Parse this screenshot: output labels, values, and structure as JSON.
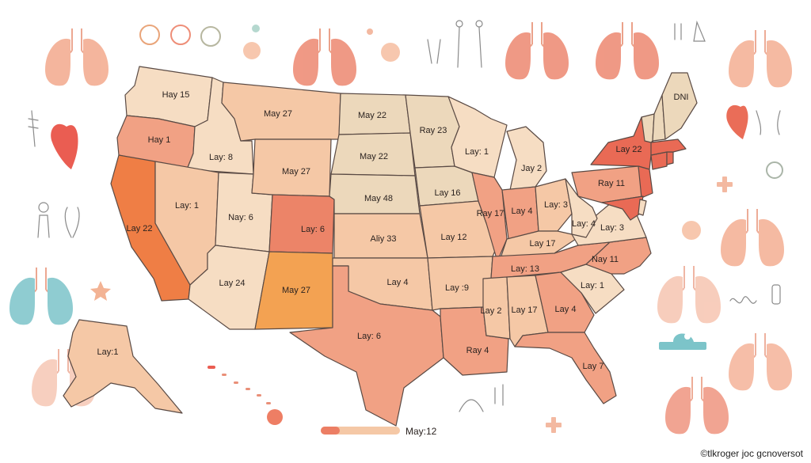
{
  "colors": {
    "very_light": "#f8dcc0",
    "light": "#f5c8a6",
    "medium": "#f1a184",
    "strong": "#ec8468",
    "deep": "#e96a55",
    "hot": "#ef7e45",
    "gold": "#f3a252",
    "tan": "#ecd8bb",
    "pale": "#f6ddc3",
    "lung": "#f2a48a",
    "lung_teal": "#7cc4c9"
  },
  "map": {
    "states": [
      {
        "id": "wa",
        "label": "Hay 15",
        "fill": "pale"
      },
      {
        "id": "or",
        "label": "Hay 1",
        "fill": "medium"
      },
      {
        "id": "ca",
        "label": "Lay 22",
        "fill": "hot"
      },
      {
        "id": "id",
        "label": "Lay: 8",
        "fill": "pale"
      },
      {
        "id": "nv",
        "label": "Lay: 1",
        "fill": "light"
      },
      {
        "id": "ut",
        "label": "Nay: 6",
        "fill": "pale"
      },
      {
        "id": "az",
        "label": "Lay 24",
        "fill": "pale"
      },
      {
        "id": "mt",
        "label": "May 27",
        "fill": "light"
      },
      {
        "id": "wy",
        "label": "May 27",
        "fill": "light"
      },
      {
        "id": "co",
        "label": "Lay: 6",
        "fill": "strong"
      },
      {
        "id": "nm",
        "label": "May 27",
        "fill": "gold"
      },
      {
        "id": "nd",
        "label": "May 22",
        "fill": "tan"
      },
      {
        "id": "sd",
        "label": "May 22",
        "fill": "tan"
      },
      {
        "id": "ne",
        "label": "May 48",
        "fill": "tan"
      },
      {
        "id": "ks",
        "label": "Aliy 33",
        "fill": "light"
      },
      {
        "id": "ok",
        "label": "Lay 4",
        "fill": "light"
      },
      {
        "id": "tx",
        "label": "Lay: 6",
        "fill": "medium"
      },
      {
        "id": "mn",
        "label": "Ray 23",
        "fill": "tan"
      },
      {
        "id": "ia",
        "label": "Lay 16",
        "fill": "tan"
      },
      {
        "id": "mo",
        "label": "Lay 12",
        "fill": "light"
      },
      {
        "id": "ar",
        "label": "Lay :9",
        "fill": "light"
      },
      {
        "id": "la",
        "label": "Ray 4",
        "fill": "medium"
      },
      {
        "id": "wi",
        "label": "Lay: 1",
        "fill": "pale"
      },
      {
        "id": "il",
        "label": "Ray 17",
        "fill": "medium"
      },
      {
        "id": "mi",
        "label": "Jay 2",
        "fill": "pale"
      },
      {
        "id": "in",
        "label": "Lay 4",
        "fill": "medium"
      },
      {
        "id": "oh",
        "label": "Lay: 3",
        "fill": "light"
      },
      {
        "id": "ky",
        "label": "Lay 17",
        "fill": "light"
      },
      {
        "id": "tn",
        "label": "Lay: 13",
        "fill": "medium"
      },
      {
        "id": "ms",
        "label": "Lay 2",
        "fill": "light"
      },
      {
        "id": "al",
        "label": "Lay 17",
        "fill": "light"
      },
      {
        "id": "ga",
        "label": "Lay 4",
        "fill": "medium"
      },
      {
        "id": "fl",
        "label": "Lay 7",
        "fill": "medium"
      },
      {
        "id": "sc",
        "label": "Lay: 1",
        "fill": "pale"
      },
      {
        "id": "nc",
        "label": "Nay 11",
        "fill": "medium"
      },
      {
        "id": "va",
        "label": "Lay: 3",
        "fill": "pale"
      },
      {
        "id": "wv",
        "label": "Lay: 4",
        "fill": "pale"
      },
      {
        "id": "pa",
        "label": "Ray 11",
        "fill": "medium"
      },
      {
        "id": "ny",
        "label": "Lay 22",
        "fill": "deep"
      },
      {
        "id": "nj",
        "label": "",
        "fill": "deep"
      },
      {
        "id": "md",
        "label": "",
        "fill": "deep"
      },
      {
        "id": "de",
        "label": "",
        "fill": "pale"
      },
      {
        "id": "ct",
        "label": "",
        "fill": "deep"
      },
      {
        "id": "ri",
        "label": "",
        "fill": "deep"
      },
      {
        "id": "ma",
        "label": "",
        "fill": "deep"
      },
      {
        "id": "vt",
        "label": "",
        "fill": "tan"
      },
      {
        "id": "nh",
        "label": "",
        "fill": "tan"
      },
      {
        "id": "me",
        "label": "DNI",
        "fill": "tan"
      },
      {
        "id": "ak",
        "label": "Lay:1",
        "fill": "light"
      }
    ]
  },
  "legend": {
    "label": "May:12"
  },
  "credit": "©tlkroger joc gcnoversot",
  "icons": [
    "lungs-icon",
    "heart-icon",
    "stethoscope-icon",
    "plus-icon",
    "star-icon",
    "pill-icon",
    "person-icon",
    "ambulance-icon",
    "dropper-icon",
    "flask-icon"
  ]
}
